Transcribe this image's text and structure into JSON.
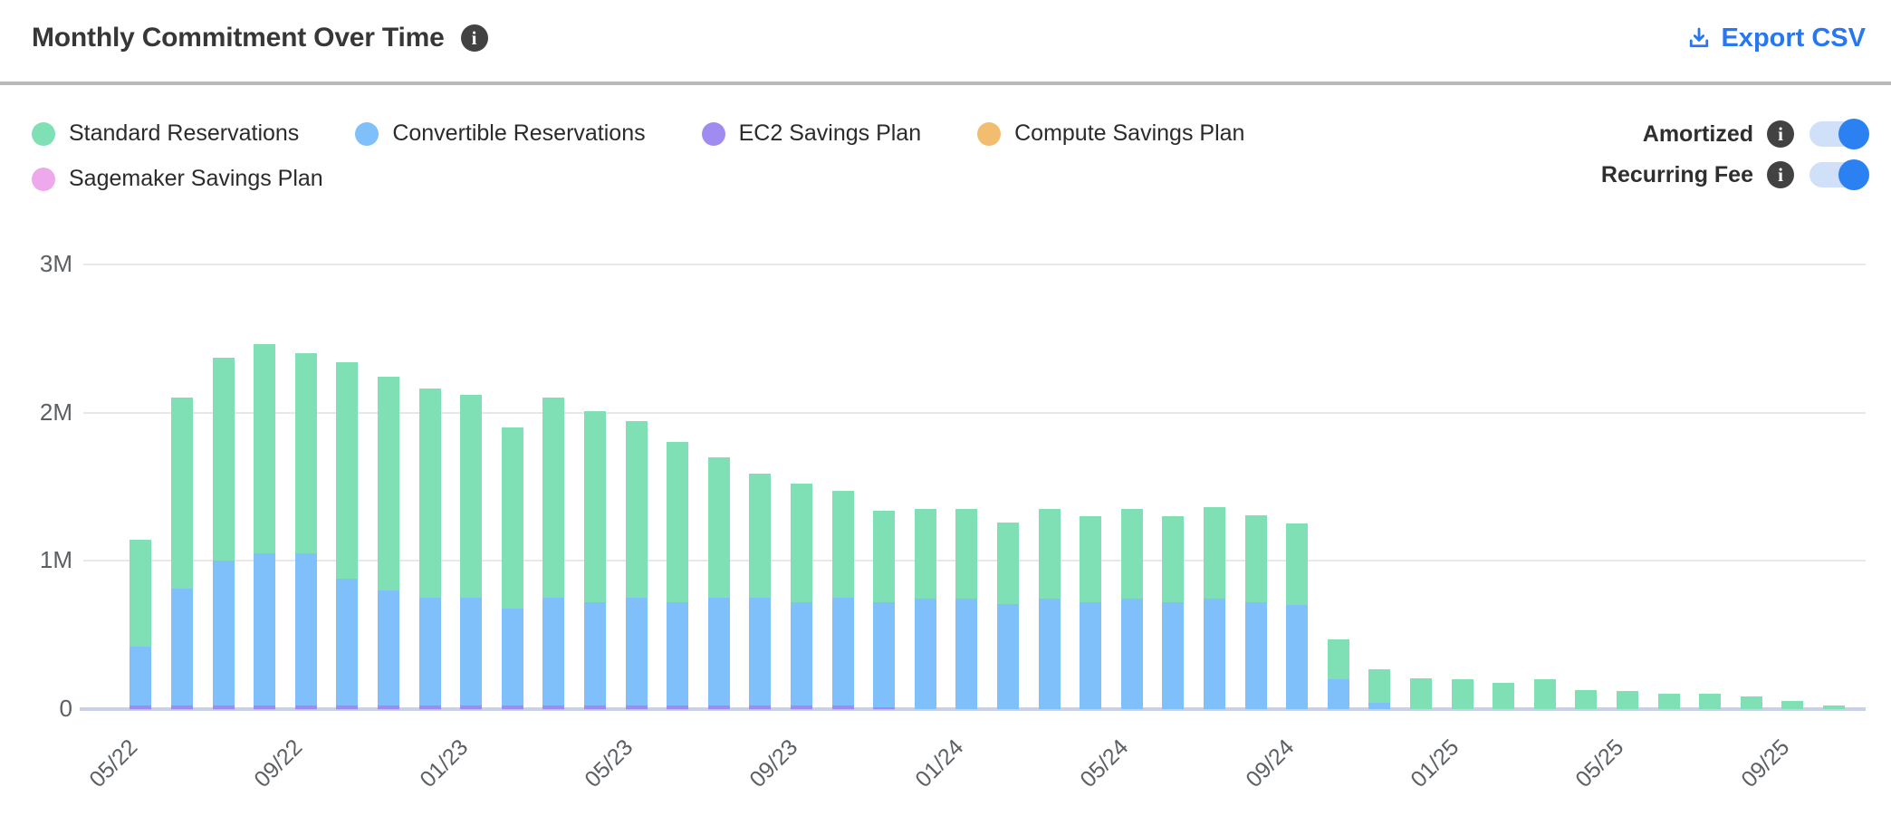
{
  "header": {
    "title": "Monthly Commitment Over Time",
    "export_label": "Export CSV"
  },
  "toggles": [
    {
      "label": "Amortized",
      "state": "on"
    },
    {
      "label": "Recurring Fee",
      "state": "on"
    }
  ],
  "colors": {
    "standard": "#7fdfb5",
    "convertible": "#7fc0fa",
    "ec2": "#a08cf0",
    "compute": "#f3bd6f",
    "sagemaker": "#eda9eb",
    "accent_blue": "#2777f2",
    "toggle_track": "#cfe0f8",
    "toggle_knob": "#2b80f2",
    "gridline": "#e8e8e8",
    "axis_line": "#c9d0ea"
  },
  "chart_data": {
    "type": "bar",
    "stacked": true,
    "title": "Monthly Commitment Over Time",
    "xlabel": "",
    "ylabel": "",
    "unit": "M",
    "ylim": [
      0,
      3.5
    ],
    "ytick_values": [
      0,
      1,
      2,
      3
    ],
    "ytick_labels": [
      "0",
      "1M",
      "2M",
      "3M"
    ],
    "xtick_every": 4,
    "grid": true,
    "legend_position": "top-left",
    "x": [
      "05/22",
      "06/22",
      "07/22",
      "08/22",
      "09/22",
      "10/22",
      "11/22",
      "12/22",
      "01/23",
      "02/23",
      "03/23",
      "04/23",
      "05/23",
      "06/23",
      "07/23",
      "08/23",
      "09/23",
      "10/23",
      "11/23",
      "12/23",
      "01/24",
      "02/24",
      "03/24",
      "04/24",
      "05/24",
      "06/24",
      "07/24",
      "08/24",
      "09/24",
      "10/24",
      "11/24",
      "12/24",
      "01/25",
      "02/25",
      "03/25",
      "04/25",
      "05/25",
      "06/25",
      "07/25",
      "08/25",
      "09/25",
      "10/25"
    ],
    "stack_order_bottom_to_top": [
      "Sagemaker Savings Plan",
      "Compute Savings Plan",
      "EC2 Savings Plan",
      "Convertible Reservations",
      "Standard Reservations"
    ],
    "series": [
      {
        "name": "Standard Reservations",
        "color": "#7fdfb5",
        "values": [
          0.72,
          1.29,
          1.37,
          1.41,
          1.35,
          1.46,
          1.44,
          1.41,
          1.37,
          1.22,
          1.35,
          1.29,
          1.19,
          1.08,
          0.95,
          0.84,
          0.8,
          0.72,
          0.62,
          0.605,
          0.605,
          0.55,
          0.605,
          0.58,
          0.605,
          0.58,
          0.615,
          0.59,
          0.55,
          0.27,
          0.225,
          0.21,
          0.2,
          0.18,
          0.2,
          0.13,
          0.12,
          0.105,
          0.105,
          0.085,
          0.055,
          0.025
        ]
      },
      {
        "name": "Convertible Reservations",
        "color": "#7fc0fa",
        "values": [
          0.397,
          0.787,
          0.977,
          1.027,
          1.027,
          0.857,
          0.777,
          0.727,
          0.727,
          0.657,
          0.727,
          0.697,
          0.727,
          0.697,
          0.727,
          0.727,
          0.697,
          0.727,
          0.707,
          0.745,
          0.745,
          0.71,
          0.745,
          0.72,
          0.745,
          0.72,
          0.745,
          0.72,
          0.7,
          0.2,
          0.045,
          0,
          0,
          0,
          0,
          0,
          0,
          0,
          0,
          0,
          0,
          0
        ]
      },
      {
        "name": "EC2 Savings Plan",
        "color": "#a08cf0",
        "values": [
          0.02,
          0.02,
          0.02,
          0.02,
          0.02,
          0.02,
          0.02,
          0.02,
          0.02,
          0.02,
          0.02,
          0.02,
          0.02,
          0.02,
          0.02,
          0.02,
          0.02,
          0.02,
          0.01,
          0,
          0,
          0,
          0,
          0,
          0,
          0,
          0,
          0,
          0,
          0,
          0,
          0,
          0,
          0,
          0,
          0,
          0,
          0,
          0,
          0,
          0,
          0
        ]
      },
      {
        "name": "Compute Savings Plan",
        "color": "#f3bd6f",
        "values": [
          0,
          0,
          0,
          0,
          0,
          0,
          0,
          0,
          0,
          0,
          0,
          0,
          0,
          0,
          0,
          0,
          0,
          0,
          0,
          0,
          0,
          0,
          0,
          0,
          0,
          0,
          0,
          0,
          0,
          0,
          0,
          0,
          0,
          0,
          0,
          0,
          0,
          0,
          0,
          0,
          0,
          0
        ]
      },
      {
        "name": "Sagemaker Savings Plan",
        "color": "#eda9eb",
        "values": [
          0.003,
          0.003,
          0.003,
          0.003,
          0.003,
          0.003,
          0.003,
          0.003,
          0.003,
          0.003,
          0.003,
          0.003,
          0.003,
          0.003,
          0.003,
          0.003,
          0.003,
          0.003,
          0.003,
          0,
          0,
          0,
          0,
          0,
          0,
          0,
          0,
          0,
          0,
          0,
          0,
          0,
          0,
          0,
          0,
          0,
          0,
          0,
          0,
          0,
          0,
          0
        ]
      }
    ]
  }
}
